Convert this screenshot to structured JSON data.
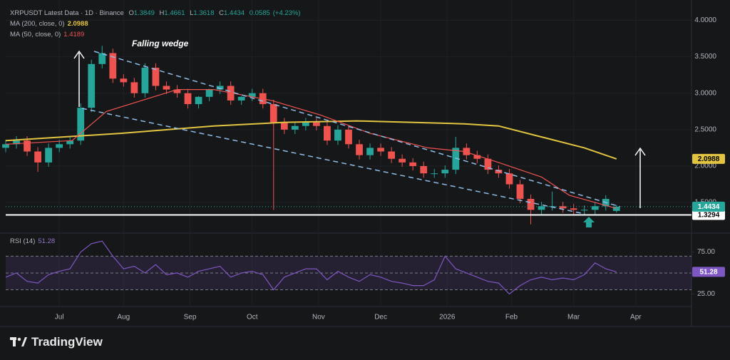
{
  "header": {
    "title": "XRPUSDT Latest Data · 1D · Binance",
    "ohlc_labels": [
      "O",
      "H",
      "L",
      "C"
    ],
    "change": 0.0585,
    "change_pct": "(+4.23%)",
    "annotation": "Falling wedge"
  },
  "branding": "TradingView",
  "chart_data": [
    {
      "type": "candlestick",
      "colors": {
        "up": "#26a69a",
        "down": "#ef5350"
      },
      "x": [
        0,
        5,
        10,
        15,
        20,
        25,
        30,
        35,
        40,
        45,
        50,
        55,
        60,
        65,
        70,
        75,
        80,
        85,
        90,
        95,
        100,
        105,
        110,
        115,
        120,
        125,
        130,
        135,
        140,
        145,
        150,
        155,
        160,
        165,
        170,
        175,
        180,
        185,
        190,
        195,
        200,
        205,
        210,
        215,
        220,
        225,
        230,
        235,
        240,
        245,
        250,
        255,
        260,
        265,
        270,
        275,
        280,
        285
      ],
      "open": [
        2.25,
        2.3,
        2.35,
        2.2,
        2.05,
        2.25,
        2.3,
        2.35,
        2.8,
        3.4,
        3.55,
        3.2,
        3.15,
        3.0,
        3.35,
        3.1,
        3.05,
        3.0,
        2.85,
        2.95,
        3.05,
        3.1,
        2.9,
        2.95,
        3.0,
        2.85,
        2.6,
        2.5,
        2.55,
        2.6,
        2.55,
        2.35,
        2.5,
        2.3,
        2.15,
        2.25,
        2.2,
        2.1,
        2.05,
        2.0,
        1.9,
        1.9,
        1.95,
        2.25,
        2.15,
        2.1,
        1.95,
        1.9,
        1.75,
        1.55,
        1.4,
        1.45,
        1.45,
        1.42,
        1.4,
        1.4,
        1.45,
        1.3849
      ],
      "high": [
        2.36,
        2.41,
        2.41,
        2.26,
        2.31,
        2.36,
        2.41,
        2.86,
        3.46,
        3.65,
        3.61,
        3.26,
        3.21,
        3.41,
        3.41,
        3.16,
        3.11,
        3.06,
        2.96,
        3.06,
        3.16,
        3.16,
        2.96,
        3.06,
        3.06,
        2.91,
        2.66,
        2.61,
        2.66,
        2.66,
        2.61,
        2.56,
        2.56,
        2.36,
        2.31,
        2.31,
        2.26,
        2.16,
        2.11,
        2.06,
        1.96,
        2.01,
        2.4,
        2.31,
        2.21,
        2.16,
        2.01,
        1.96,
        1.81,
        1.61,
        1.51,
        1.65,
        1.51,
        1.48,
        1.46,
        1.51,
        1.6,
        1.4661
      ],
      "low": [
        2.19,
        2.24,
        2.14,
        1.92,
        1.99,
        2.19,
        2.24,
        2.29,
        2.74,
        3.34,
        3.14,
        3.09,
        2.94,
        2.94,
        3.04,
        2.99,
        2.94,
        2.79,
        2.79,
        2.89,
        2.99,
        2.84,
        2.84,
        2.89,
        2.79,
        1.4,
        2.44,
        2.44,
        2.49,
        2.49,
        2.29,
        2.29,
        2.24,
        2.09,
        2.09,
        2.14,
        2.04,
        1.99,
        1.94,
        1.84,
        1.84,
        1.84,
        1.89,
        2.09,
        2.04,
        1.89,
        1.84,
        1.69,
        1.49,
        1.2,
        1.34,
        1.39,
        1.36,
        1.34,
        1.34,
        1.34,
        1.39,
        1.3618
      ],
      "close": [
        2.3,
        2.35,
        2.2,
        2.05,
        2.25,
        2.3,
        2.35,
        2.8,
        3.4,
        3.55,
        3.2,
        3.15,
        3.0,
        3.35,
        3.1,
        3.05,
        3.0,
        2.85,
        2.95,
        3.05,
        3.1,
        2.9,
        2.95,
        3.0,
        2.85,
        2.6,
        2.5,
        2.55,
        2.6,
        2.55,
        2.35,
        2.5,
        2.3,
        2.15,
        2.25,
        2.2,
        2.1,
        2.05,
        2.0,
        1.9,
        1.9,
        1.95,
        2.25,
        2.15,
        2.1,
        1.95,
        1.9,
        1.75,
        1.55,
        1.4,
        1.45,
        1.45,
        1.42,
        1.4,
        1.4,
        1.45,
        1.55,
        1.4434
      ],
      "series": [
        {
          "name": "MA (200, close, 0)",
          "color": "#e2c441",
          "x": [
            0,
            54,
            97,
            130,
            164,
            214,
            230,
            250,
            270,
            285
          ],
          "values": [
            2.35,
            2.45,
            2.55,
            2.6,
            2.62,
            2.58,
            2.55,
            2.4,
            2.25,
            2.0988
          ]
        },
        {
          "name": "MA (50, close, 0)",
          "color": "#ef5350",
          "x": [
            0,
            31,
            47,
            80,
            97,
            124,
            147,
            170,
            197,
            214,
            230,
            250,
            263,
            285
          ],
          "values": [
            2.3,
            2.35,
            2.75,
            3.05,
            3.05,
            2.9,
            2.7,
            2.45,
            2.25,
            2.2,
            2.05,
            1.85,
            1.6,
            1.4189
          ]
        }
      ],
      "support_level": 1.3294,
      "xlim": [
        0,
        320
      ],
      "ylim": [
        1.1,
        4.2
      ],
      "yticks": [
        {
          "value": 1.5,
          "label": "1.5000"
        },
        {
          "value": 2,
          "label": "2.0000"
        },
        {
          "value": 2.5,
          "label": "2.5000"
        },
        {
          "value": 3,
          "label": "3.0000"
        },
        {
          "value": 3.5,
          "label": "3.5000"
        },
        {
          "value": 4,
          "label": "4.0000"
        }
      ],
      "xticks": [
        {
          "value": 25,
          "label": "Jul"
        },
        {
          "value": 55,
          "label": "Aug"
        },
        {
          "value": 86,
          "label": "Sep"
        },
        {
          "value": 115,
          "label": "Oct"
        },
        {
          "value": 146,
          "label": "Nov"
        },
        {
          "value": 175,
          "label": "Dec"
        },
        {
          "value": 206,
          "label": "2026"
        },
        {
          "value": 236,
          "label": "Feb"
        },
        {
          "value": 265,
          "label": "Mar"
        },
        {
          "value": 294,
          "label": "Apr"
        }
      ]
    },
    {
      "type": "line",
      "name": "RSI (14)",
      "color": "#7e57c2",
      "x": [
        0,
        5,
        10,
        15,
        20,
        25,
        30,
        35,
        40,
        45,
        50,
        55,
        60,
        65,
        70,
        75,
        80,
        85,
        90,
        95,
        100,
        105,
        110,
        115,
        120,
        125,
        130,
        135,
        140,
        145,
        150,
        155,
        160,
        165,
        170,
        175,
        180,
        185,
        190,
        195,
        200,
        205,
        210,
        215,
        220,
        225,
        230,
        235,
        240,
        245,
        250,
        255,
        260,
        265,
        270,
        275,
        280,
        285
      ],
      "values": [
        45,
        50,
        40,
        38,
        48,
        52,
        55,
        75,
        85,
        88,
        70,
        55,
        58,
        50,
        60,
        48,
        50,
        45,
        52,
        55,
        58,
        45,
        50,
        52,
        48,
        30,
        45,
        50,
        55,
        55,
        42,
        52,
        45,
        40,
        48,
        45,
        40,
        38,
        35,
        35,
        42,
        70,
        55,
        50,
        45,
        40,
        38,
        25,
        35,
        42,
        45,
        42,
        44,
        42,
        48,
        62,
        55,
        51.28
      ],
      "levels": [
        70,
        50,
        30
      ],
      "xlim": [
        0,
        320
      ],
      "ylim": [
        10,
        95
      ],
      "yticks": [
        {
          "value": 25,
          "label": "25.00"
        },
        {
          "value": 75,
          "label": "75.00"
        }
      ]
    }
  ]
}
